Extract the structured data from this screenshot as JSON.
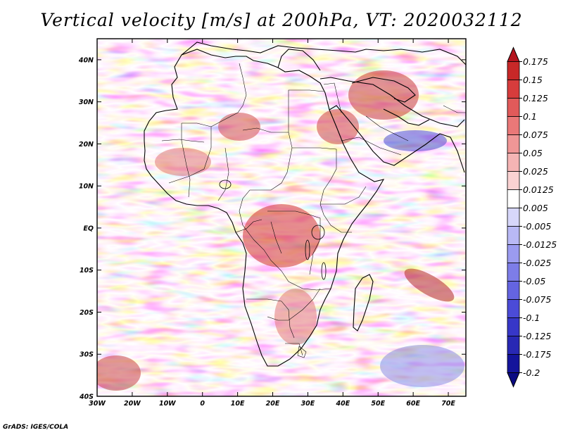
{
  "title": "Vertical velocity [m/s] at 200hPa, VT: 2020032112",
  "footer": "GrADS: IGES/COLA",
  "chart_data": {
    "type": "heatmap",
    "variable": "Vertical velocity",
    "units": "m/s",
    "level": "200hPa",
    "valid_time": "2020032112",
    "x_axis": {
      "range": [
        -30,
        75
      ],
      "ticks": [
        -30,
        -20,
        -10,
        0,
        10,
        20,
        30,
        40,
        50,
        60,
        70
      ],
      "tick_labels": [
        "30W",
        "20W",
        "10W",
        "0",
        "10E",
        "20E",
        "30E",
        "40E",
        "50E",
        "60E",
        "70E"
      ]
    },
    "y_axis": {
      "range": [
        -40,
        45
      ],
      "ticks": [
        40,
        30,
        20,
        10,
        0,
        -10,
        -20,
        -30,
        -40
      ],
      "tick_labels": [
        "40N",
        "30N",
        "20N",
        "10N",
        "EQ",
        "10S",
        "20S",
        "30S",
        "40S"
      ]
    },
    "colorbar": {
      "levels": [
        "0.175",
        "0.15",
        "0.125",
        "0.1",
        "0.075",
        "0.05",
        "0.025",
        "0.0125",
        "0.005",
        "-0.005",
        "-0.0125",
        "-0.025",
        "-0.05",
        "-0.075",
        "-0.1",
        "-0.125",
        "-0.175",
        "-0.2"
      ],
      "colors": [
        "#b4141e",
        "#c82828",
        "#d73c3c",
        "#e15a5a",
        "#ea7878",
        "#f09696",
        "#f5b4b4",
        "#fad2d2",
        "#ffffff",
        "#d7d7fa",
        "#b9b9f5",
        "#9b9bf0",
        "#7d7de8",
        "#6464e1",
        "#4b4bd7",
        "#3737c8",
        "#2828b4",
        "#14149b",
        "#0a0a82"
      ]
    }
  }
}
